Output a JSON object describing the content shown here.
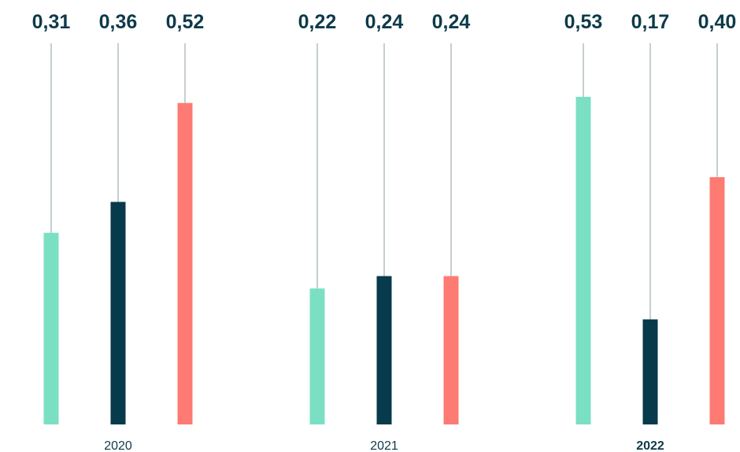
{
  "chart_data": {
    "type": "bar",
    "title": "",
    "xlabel": "",
    "ylabel": "",
    "ylim": [
      0,
      0.6
    ],
    "grid": false,
    "categories": [
      "2020",
      "2021",
      "2022"
    ],
    "category_emphasis": [
      false,
      false,
      true
    ],
    "series": [
      {
        "color": "#7be0c3",
        "values": [
          0.31,
          0.22,
          0.53
        ]
      },
      {
        "color": "#073a4b",
        "values": [
          0.36,
          0.24,
          0.17
        ]
      },
      {
        "color": "#fd7b72",
        "values": [
          0.52,
          0.24,
          0.4
        ]
      }
    ],
    "data_labels": [
      [
        "0,31",
        "0,36",
        "0,52"
      ],
      [
        "0,22",
        "0,24",
        "0,24"
      ],
      [
        "0,53",
        "0,17",
        "0,40"
      ]
    ],
    "leader_line_color": "#8e9ea6",
    "label_color": "#0d3a4a"
  }
}
